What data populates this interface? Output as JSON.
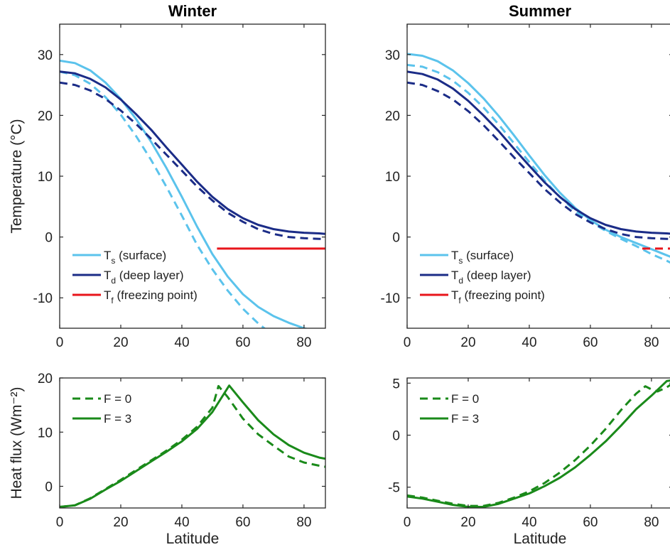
{
  "colors": {
    "surface": "#5bc3ec",
    "deep": "#1b2c87",
    "freezing": "#e8151b",
    "flux": "#1a8a1a"
  },
  "chart_data": [
    {
      "type": "line",
      "panel": "winter-temperature",
      "title": "Winter",
      "xlabel": "",
      "ylabel": "Temperature (°C)",
      "xlim": [
        0,
        87
      ],
      "ylim": [
        -15,
        35
      ],
      "xticks": [
        "0",
        "20",
        "40",
        "60",
        "80"
      ],
      "yticks": [
        "-10",
        "0",
        "10",
        "20",
        "30"
      ],
      "legend": {
        "position": "bottom-left",
        "entries": [
          {
            "main": "T",
            "sub": "s",
            "rest": " (surface)"
          },
          {
            "main": "T",
            "sub": "d",
            "rest": " (deep layer)"
          },
          {
            "main": "T",
            "sub": "f",
            "rest": " (freezing point)"
          }
        ]
      },
      "series": [
        {
          "color": "surface",
          "style": "solid",
          "x": [
            0,
            5,
            10,
            15,
            20,
            25,
            30,
            35,
            40,
            45,
            50,
            55,
            60,
            65,
            70,
            75,
            80,
            85,
            87
          ],
          "y": [
            29,
            28.6,
            27.4,
            25.4,
            22.7,
            19.4,
            15.6,
            11.3,
            6.6,
            1.7,
            -2.8,
            -6.5,
            -9.4,
            -11.5,
            -13.0,
            -14.1,
            -15.0,
            -15.6,
            -15.8
          ]
        },
        {
          "color": "surface",
          "style": "dashed",
          "x": [
            0,
            5,
            10,
            15,
            20,
            25,
            30,
            35,
            40,
            45,
            50,
            55,
            60,
            65,
            70
          ],
          "y": [
            27.2,
            26.6,
            25.2,
            23.0,
            20.1,
            16.6,
            12.6,
            8.2,
            3.5,
            -1.3,
            -5.3,
            -8.8,
            -11.8,
            -14.2,
            -16.2
          ]
        },
        {
          "color": "deep",
          "style": "solid",
          "x": [
            0,
            5,
            10,
            15,
            20,
            25,
            30,
            35,
            40,
            45,
            50,
            55,
            60,
            65,
            70,
            75,
            80,
            85,
            87
          ],
          "y": [
            27.2,
            26.9,
            26.0,
            24.6,
            22.6,
            20.2,
            17.6,
            14.7,
            11.9,
            9.1,
            6.6,
            4.6,
            3.1,
            2.0,
            1.3,
            0.9,
            0.7,
            0.6,
            0.5
          ]
        },
        {
          "color": "deep",
          "style": "dashed",
          "x": [
            0,
            5,
            10,
            15,
            20,
            25,
            30,
            35,
            40,
            45,
            50,
            55,
            60,
            65,
            70,
            75,
            80,
            85,
            87
          ],
          "y": [
            25.4,
            25.0,
            24.1,
            22.7,
            20.8,
            18.6,
            16.1,
            13.5,
            10.9,
            8.3,
            6.0,
            4.0,
            2.5,
            1.3,
            0.5,
            0.0,
            -0.2,
            -0.3,
            -0.3
          ]
        },
        {
          "color": "freezing",
          "style": "solid",
          "x": [
            51.5,
            87
          ],
          "y": [
            -1.9,
            -1.9
          ]
        }
      ]
    },
    {
      "type": "line",
      "panel": "summer-temperature",
      "title": "Summer",
      "xlabel": "",
      "ylabel": "",
      "xlim": [
        0,
        87
      ],
      "ylim": [
        -15,
        35
      ],
      "xticks": [
        "0",
        "20",
        "40",
        "60",
        "80"
      ],
      "yticks": [
        "-10",
        "0",
        "10",
        "20",
        "30"
      ],
      "legend": {
        "position": "bottom-left",
        "entries": [
          {
            "main": "T",
            "sub": "s",
            "rest": " (surface)"
          },
          {
            "main": "T",
            "sub": "d",
            "rest": " (deep layer)"
          },
          {
            "main": "T",
            "sub": "f",
            "rest": " (freezing point)"
          }
        ]
      },
      "series": [
        {
          "color": "surface",
          "style": "solid",
          "x": [
            0,
            5,
            10,
            15,
            20,
            25,
            30,
            35,
            40,
            45,
            50,
            55,
            60,
            65,
            70,
            75,
            80,
            85,
            87
          ],
          "y": [
            30.1,
            29.8,
            28.9,
            27.4,
            25.3,
            22.8,
            19.9,
            16.7,
            13.4,
            10.2,
            7.3,
            4.8,
            2.8,
            1.2,
            0.0,
            -1.0,
            -2.0,
            -3.0,
            -3.4
          ]
        },
        {
          "color": "surface",
          "style": "dashed",
          "x": [
            0,
            5,
            10,
            15,
            20,
            25,
            30,
            35,
            40,
            45,
            50,
            55,
            60,
            65,
            70,
            75,
            80,
            85,
            87
          ],
          "y": [
            28.3,
            28.0,
            27.1,
            25.7,
            23.7,
            21.3,
            18.5,
            15.4,
            12.3,
            9.3,
            6.6,
            4.3,
            2.5,
            1.0,
            -0.3,
            -1.5,
            -2.8,
            -3.9,
            -4.4
          ]
        },
        {
          "color": "deep",
          "style": "solid",
          "x": [
            0,
            5,
            10,
            15,
            20,
            25,
            30,
            35,
            40,
            45,
            50,
            55,
            60,
            65,
            70,
            75,
            80,
            85,
            87
          ],
          "y": [
            27.2,
            26.8,
            25.9,
            24.4,
            22.4,
            20.0,
            17.4,
            14.5,
            11.7,
            9.0,
            6.6,
            4.6,
            3.1,
            2.0,
            1.3,
            0.9,
            0.7,
            0.6,
            0.5
          ]
        },
        {
          "color": "deep",
          "style": "dashed",
          "x": [
            0,
            5,
            10,
            15,
            20,
            25,
            30,
            35,
            40,
            45,
            50,
            55,
            60,
            65,
            70,
            75,
            80,
            85,
            87
          ],
          "y": [
            25.4,
            25.0,
            24.0,
            22.6,
            20.7,
            18.4,
            15.8,
            13.1,
            10.5,
            7.9,
            5.7,
            3.8,
            2.4,
            1.3,
            0.5,
            0.0,
            -0.2,
            -0.3,
            -0.3
          ]
        },
        {
          "color": "freezing",
          "style": "dashed",
          "x": [
            77,
            87
          ],
          "y": [
            -1.9,
            -1.9
          ]
        }
      ]
    },
    {
      "type": "line",
      "panel": "winter-heatflux",
      "title": "",
      "xlabel": "Latitude",
      "ylabel": "Heat flux (Wm⁻²)",
      "xlim": [
        0,
        87
      ],
      "ylim": [
        -4,
        20
      ],
      "xticks": [
        "0",
        "20",
        "40",
        "60",
        "80"
      ],
      "yticks": [
        "0",
        "10",
        "20"
      ],
      "legend": {
        "position": "top-left",
        "entries": [
          {
            "main": "F = 0",
            "sub": "",
            "rest": ""
          },
          {
            "main": "F = 3",
            "sub": "",
            "rest": ""
          }
        ]
      },
      "series": [
        {
          "color": "flux",
          "style": "dashed",
          "x": [
            0,
            5,
            10,
            15,
            20,
            25,
            30,
            35,
            40,
            45,
            50,
            52,
            55,
            60,
            65,
            70,
            75,
            80,
            85,
            87
          ],
          "y": [
            -3.8,
            -3.5,
            -2.2,
            -0.5,
            1.2,
            3.0,
            4.8,
            6.6,
            8.6,
            11.0,
            14.5,
            18.5,
            16.5,
            12.5,
            9.6,
            7.5,
            5.5,
            4.4,
            3.8,
            3.6
          ]
        },
        {
          "color": "flux",
          "style": "solid",
          "x": [
            0,
            5,
            10,
            15,
            20,
            25,
            30,
            35,
            40,
            45,
            50,
            55.5,
            60,
            65,
            70,
            75,
            80,
            85,
            87
          ],
          "y": [
            -3.8,
            -3.5,
            -2.3,
            -0.6,
            1.0,
            2.8,
            4.6,
            6.4,
            8.3,
            10.6,
            13.7,
            18.6,
            15.5,
            12.2,
            9.6,
            7.6,
            6.2,
            5.3,
            5.1
          ]
        }
      ]
    },
    {
      "type": "line",
      "panel": "summer-heatflux",
      "title": "",
      "xlabel": "Latitude",
      "ylabel": "",
      "xlim": [
        0,
        87
      ],
      "ylim": [
        -7,
        5.5
      ],
      "xticks": [
        "0",
        "20",
        "40",
        "60",
        "80"
      ],
      "yticks": [
        "-5",
        "0",
        "5"
      ],
      "legend": {
        "position": "top-left",
        "entries": [
          {
            "main": "F = 0",
            "sub": "",
            "rest": ""
          },
          {
            "main": "F = 3",
            "sub": "",
            "rest": ""
          }
        ]
      },
      "series": [
        {
          "color": "flux",
          "style": "dashed",
          "x": [
            0,
            5,
            10,
            15,
            20,
            25,
            30,
            35,
            40,
            45,
            50,
            55,
            60,
            65,
            70,
            75,
            78,
            80,
            82,
            85,
            87
          ],
          "y": [
            -5.8,
            -6.0,
            -6.3,
            -6.6,
            -6.8,
            -6.8,
            -6.5,
            -6.0,
            -5.4,
            -4.6,
            -3.6,
            -2.4,
            -1.0,
            0.6,
            2.4,
            4.0,
            4.7,
            4.4,
            4.2,
            4.6,
            5.0
          ]
        },
        {
          "color": "flux",
          "style": "solid",
          "x": [
            0,
            5,
            10,
            15,
            20,
            25,
            30,
            35,
            40,
            45,
            50,
            55,
            60,
            65,
            70,
            75,
            80,
            85,
            87
          ],
          "y": [
            -5.9,
            -6.1,
            -6.4,
            -6.7,
            -6.9,
            -6.9,
            -6.6,
            -6.1,
            -5.6,
            -4.9,
            -4.1,
            -3.1,
            -1.9,
            -0.6,
            0.9,
            2.5,
            3.8,
            5.2,
            5.3
          ]
        }
      ]
    }
  ]
}
